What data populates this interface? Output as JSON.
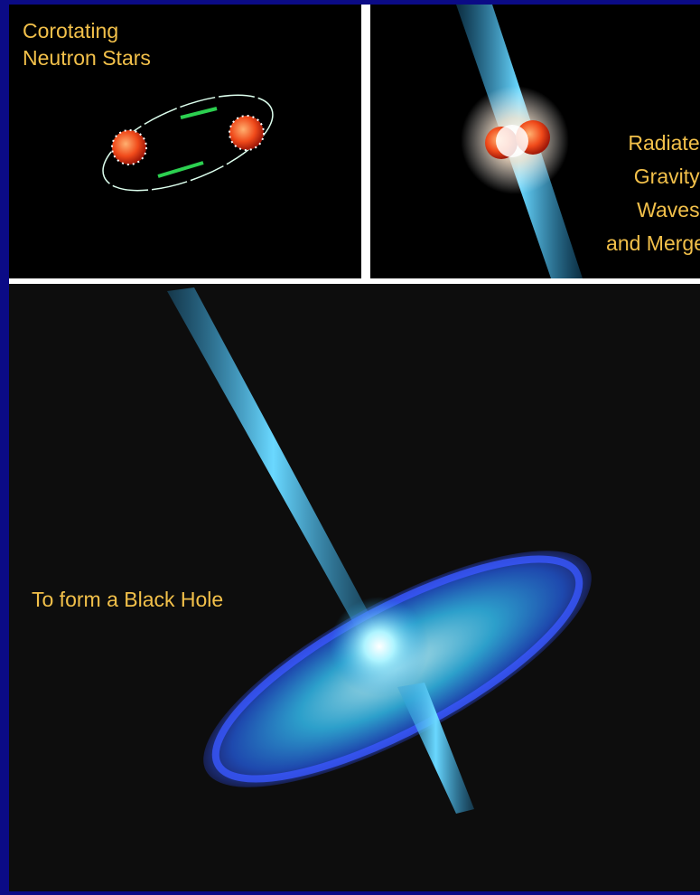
{
  "panels": [
    {
      "lines": [
        "Corotating",
        "Neutron Stars"
      ]
    },
    {
      "lines": [
        "Radiate",
        "Gravity",
        "Waves",
        "and Merge"
      ]
    },
    {
      "lines": [
        "To form a Black Hole"
      ]
    }
  ]
}
